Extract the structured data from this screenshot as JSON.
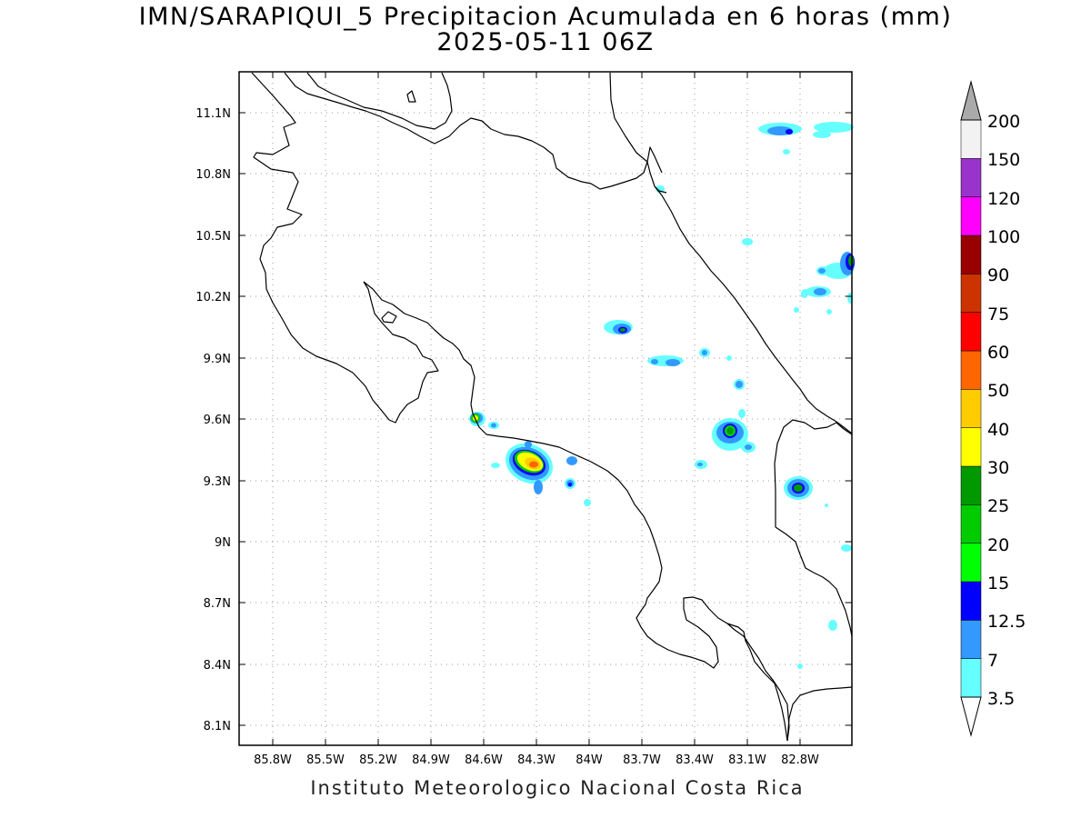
{
  "title": {
    "line1": "IMN/SARAPIQUI_5 Precipitacion Acumulada en 6 horas (mm)",
    "line2": "2025-05-11 06Z"
  },
  "footer": "Instituto Meteorologico Nacional Costa Rica",
  "axes": {
    "lat_ticks": [
      "11.1N",
      "10.8N",
      "10.5N",
      "10.2N",
      "9.9N",
      "9.6N",
      "9.3N",
      "9N",
      "8.7N",
      "8.4N",
      "8.1N"
    ],
    "lon_ticks": [
      "85.8W",
      "85.5W",
      "85.2W",
      "84.9W",
      "84.6W",
      "84.3W",
      "84W",
      "83.7W",
      "83.4W",
      "83.1W",
      "82.8W"
    ],
    "grid": "dotted"
  },
  "colorbar": {
    "levels": [
      "3.5",
      "7",
      "12.5",
      "15",
      "20",
      "25",
      "30",
      "40",
      "50",
      "60",
      "75",
      "90",
      "100",
      "120",
      "150",
      "200"
    ],
    "colors": [
      "#66ffff",
      "#3399ff",
      "#0000ff",
      "#00ff00",
      "#00cc00",
      "#009900",
      "#ffff00",
      "#ffcc00",
      "#ff6600",
      "#ff0000",
      "#cc3300",
      "#990000",
      "#ff00ff",
      "#9933cc",
      "#f2f2f2",
      "#aaaaaa"
    ]
  }
}
